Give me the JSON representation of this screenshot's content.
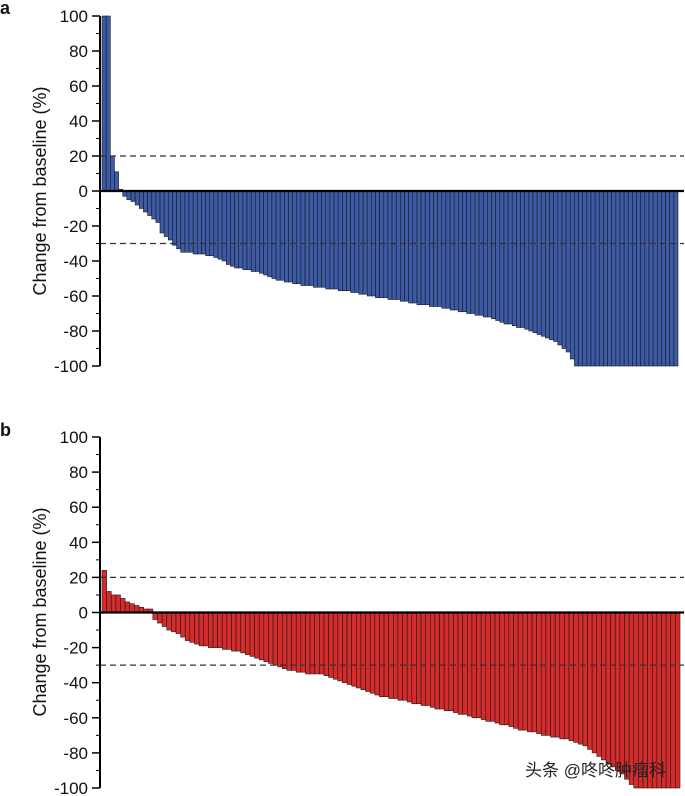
{
  "chart_data": [
    {
      "panel_label": "a",
      "type": "bar",
      "ylabel": "Change from baseline (%)",
      "ylim": [
        -100,
        100
      ],
      "yticks": [
        100,
        80,
        60,
        40,
        20,
        0,
        -20,
        -40,
        -60,
        -80,
        -100
      ],
      "reference_lines": [
        20,
        -30
      ],
      "color": "#3c5aa6",
      "values": [
        100,
        100,
        20,
        11,
        1,
        -3,
        -5,
        -6,
        -8,
        -10,
        -12,
        -14,
        -16,
        -18,
        -24,
        -26,
        -28,
        -31,
        -33,
        -35,
        -35,
        -35,
        -36,
        -36,
        -36,
        -37,
        -37,
        -38,
        -39,
        -40,
        -42,
        -43,
        -44,
        -44,
        -45,
        -45,
        -46,
        -46,
        -47,
        -48,
        -49,
        -50,
        -51,
        -51,
        -52,
        -52,
        -53,
        -53,
        -54,
        -54,
        -54,
        -55,
        -55,
        -55,
        -56,
        -56,
        -56,
        -57,
        -57,
        -57,
        -58,
        -58,
        -59,
        -59,
        -60,
        -60,
        -61,
        -61,
        -61,
        -62,
        -62,
        -62,
        -63,
        -63,
        -64,
        -64,
        -65,
        -65,
        -65,
        -66,
        -66,
        -66,
        -67,
        -67,
        -68,
        -68,
        -69,
        -69,
        -70,
        -70,
        -71,
        -71,
        -72,
        -72,
        -73,
        -74,
        -75,
        -76,
        -76,
        -77,
        -78,
        -78,
        -79,
        -80,
        -81,
        -82,
        -83,
        -84,
        -85,
        -86,
        -88,
        -90,
        -92,
        -96,
        -100,
        -100,
        -100,
        -100,
        -100,
        -100,
        -100,
        -100,
        -100,
        -100,
        -100,
        -100,
        -100,
        -100,
        -100,
        -100,
        -100,
        -100,
        -100,
        -100,
        -100,
        -100,
        -100,
        -100,
        -100
      ]
    },
    {
      "panel_label": "b",
      "type": "bar",
      "ylabel": "Change from baseline (%)",
      "ylim": [
        -100,
        100
      ],
      "yticks": [
        100,
        80,
        60,
        40,
        20,
        0,
        -20,
        -40,
        -60,
        -80,
        -100
      ],
      "reference_lines": [
        20,
        -30
      ],
      "color": "#d62b2b",
      "values": [
        24,
        12,
        10,
        10,
        8,
        6,
        5,
        4,
        3,
        2,
        2,
        -4,
        -6,
        -8,
        -10,
        -11,
        -12,
        -14,
        -16,
        -17,
        -18,
        -19,
        -19,
        -20,
        -20,
        -20,
        -21,
        -21,
        -22,
        -22,
        -23,
        -24,
        -25,
        -26,
        -27,
        -28,
        -29,
        -30,
        -31,
        -32,
        -33,
        -33,
        -34,
        -34,
        -35,
        -35,
        -35,
        -35,
        -36,
        -37,
        -38,
        -39,
        -40,
        -41,
        -42,
        -43,
        -44,
        -45,
        -46,
        -47,
        -48,
        -48,
        -49,
        -49,
        -50,
        -50,
        -51,
        -52,
        -52,
        -53,
        -53,
        -54,
        -55,
        -55,
        -56,
        -56,
        -57,
        -58,
        -58,
        -59,
        -60,
        -60,
        -61,
        -62,
        -62,
        -63,
        -64,
        -64,
        -65,
        -66,
        -67,
        -67,
        -68,
        -68,
        -69,
        -70,
        -70,
        -71,
        -71,
        -72,
        -72,
        -73,
        -74,
        -75,
        -76,
        -78,
        -80,
        -82,
        -84,
        -86,
        -88,
        -90,
        -92,
        -95,
        -98,
        -100,
        -100,
        -100,
        -100,
        -100,
        -100,
        -100,
        -100,
        -100,
        -100
      ]
    }
  ],
  "watermark": "头条 @咚咚肿瘤科"
}
